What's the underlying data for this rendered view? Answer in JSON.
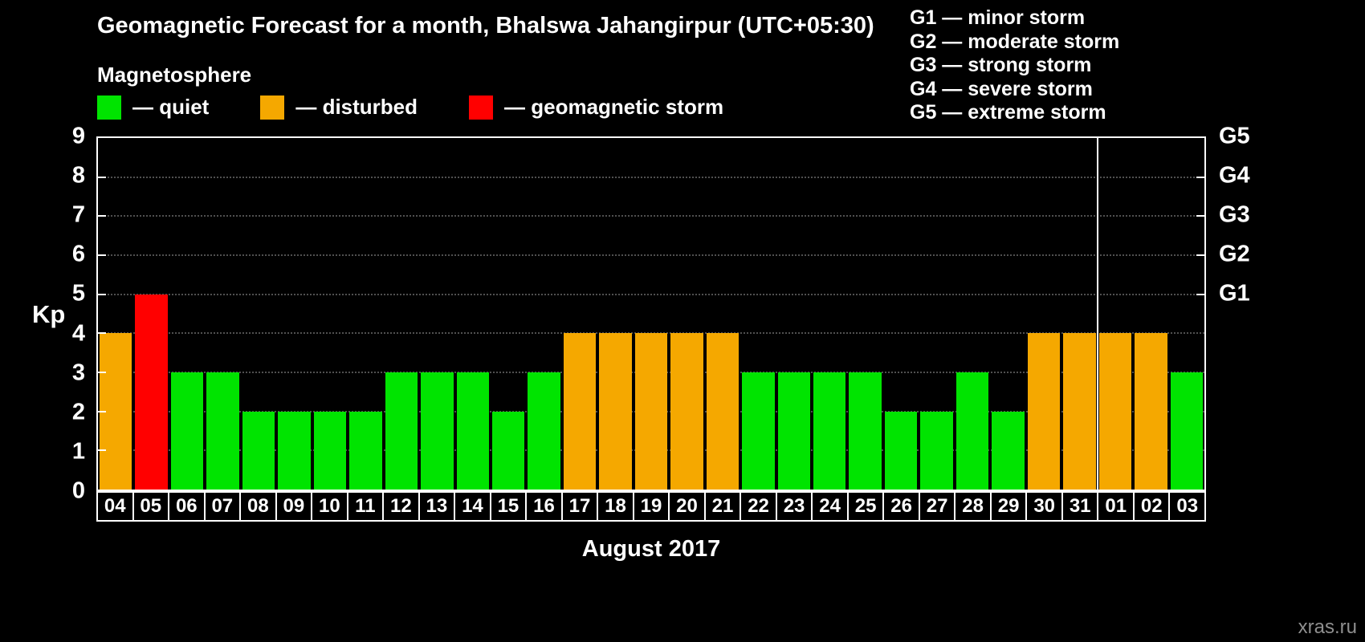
{
  "header": {
    "title": "Geomagnetic Forecast for a month, Bhalswa Jahangirpur (UTC+05:30)",
    "subtitle": "Magnetosphere"
  },
  "legend": {
    "items": [
      {
        "key": "quiet",
        "label": "— quiet"
      },
      {
        "key": "disturbed",
        "label": "— disturbed"
      },
      {
        "key": "storm",
        "label": "— geomagnetic storm"
      }
    ]
  },
  "g_scale": {
    "lines": [
      "G1 — minor storm",
      "G2 — moderate storm",
      "G3 — strong storm",
      "G4 — severe storm",
      "G5 — extreme storm"
    ]
  },
  "colors": {
    "quiet": "#00e400",
    "disturbed": "#f5a800",
    "storm": "#ff0000"
  },
  "axis": {
    "kp_label": "Kp",
    "month_label": "August 2017"
  },
  "watermark": "xras.ru",
  "chart_data": {
    "type": "bar",
    "title": "Geomagnetic Forecast for a month, Bhalswa Jahangirpur (UTC+05:30)",
    "xlabel": "August 2017",
    "ylabel": "Kp",
    "ylim": [
      0,
      9
    ],
    "yticks": [
      0,
      1,
      2,
      3,
      4,
      5,
      6,
      7,
      8,
      9
    ],
    "grid": "dotted horizontal lines at integer Kp levels",
    "legend_position": "top-left",
    "categories": [
      "04",
      "05",
      "06",
      "07",
      "08",
      "09",
      "10",
      "11",
      "12",
      "13",
      "14",
      "15",
      "16",
      "17",
      "18",
      "19",
      "20",
      "21",
      "22",
      "23",
      "24",
      "25",
      "26",
      "27",
      "28",
      "29",
      "30",
      "31",
      "01",
      "02",
      "03"
    ],
    "values": [
      4,
      5,
      3,
      3,
      2,
      2,
      2,
      2,
      3,
      3,
      3,
      2,
      3,
      4,
      4,
      4,
      4,
      4,
      3,
      3,
      3,
      3,
      2,
      2,
      3,
      2,
      4,
      4,
      4,
      4,
      3
    ],
    "statuses": [
      "disturbed",
      "storm",
      "quiet",
      "quiet",
      "quiet",
      "quiet",
      "quiet",
      "quiet",
      "quiet",
      "quiet",
      "quiet",
      "quiet",
      "quiet",
      "disturbed",
      "disturbed",
      "disturbed",
      "disturbed",
      "disturbed",
      "quiet",
      "quiet",
      "quiet",
      "quiet",
      "quiet",
      "quiet",
      "quiet",
      "quiet",
      "disturbed",
      "disturbed",
      "disturbed",
      "disturbed",
      "quiet"
    ],
    "right_axis": [
      {
        "label": "G1",
        "kp": 5
      },
      {
        "label": "G2",
        "kp": 6
      },
      {
        "label": "G3",
        "kp": 7
      },
      {
        "label": "G4",
        "kp": 8
      },
      {
        "label": "G5",
        "kp": 9
      }
    ],
    "month_boundary_after": "31"
  }
}
